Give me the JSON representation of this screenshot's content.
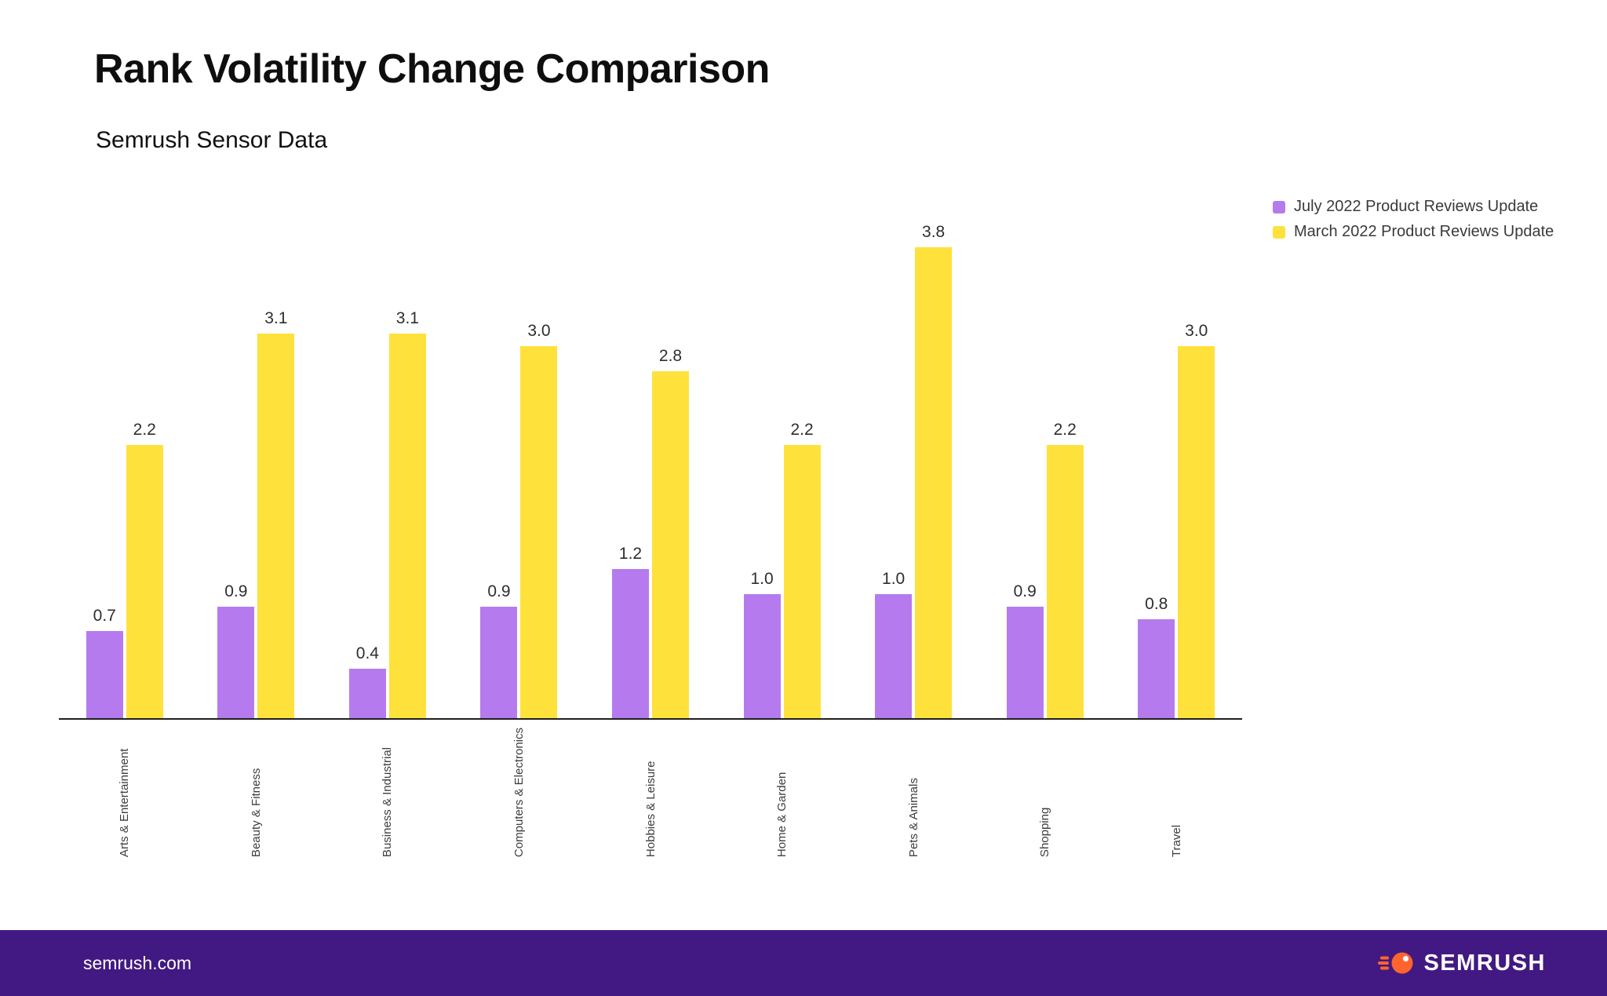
{
  "page": {
    "title": "Rank Volatility Change Comparison",
    "subtitle": "Semrush Sensor Data"
  },
  "legend": [
    {
      "label": "July 2022 Product Reviews Update",
      "color": "#b57bee"
    },
    {
      "label": "March 2022 Product Reviews Update",
      "color": "#ffe13b"
    }
  ],
  "chart_data": {
    "type": "bar",
    "title": "Rank Volatility Change Comparison",
    "subtitle": "Semrush Sensor Data",
    "categories": [
      "Arts & Entertainment",
      "Beauty & Fitness",
      "Business & Industrial",
      "Computers & Electronics",
      "Hobbies & Leisure",
      "Home & Garden",
      "Pets & Animals",
      "Shopping",
      "Travel"
    ],
    "series": [
      {
        "name": "July 2022 Product Reviews Update",
        "color": "#b57bee",
        "values": [
          0.7,
          0.9,
          0.4,
          0.9,
          1.2,
          1.0,
          1.0,
          0.9,
          0.8
        ]
      },
      {
        "name": "March 2022 Product Reviews Update",
        "color": "#ffe13b",
        "values": [
          2.2,
          3.1,
          3.1,
          3.0,
          2.8,
          2.2,
          3.8,
          2.2,
          3.0
        ]
      }
    ],
    "ylim": [
      0,
      4.3
    ],
    "grid": false,
    "legend_position": "top-right",
    "value_labels": true,
    "ylabel": "",
    "xlabel": ""
  },
  "footer": {
    "left_text": "semrush.com",
    "brand": "SEMRUSH",
    "background": "#421982",
    "logo_color": "#ff642d"
  }
}
